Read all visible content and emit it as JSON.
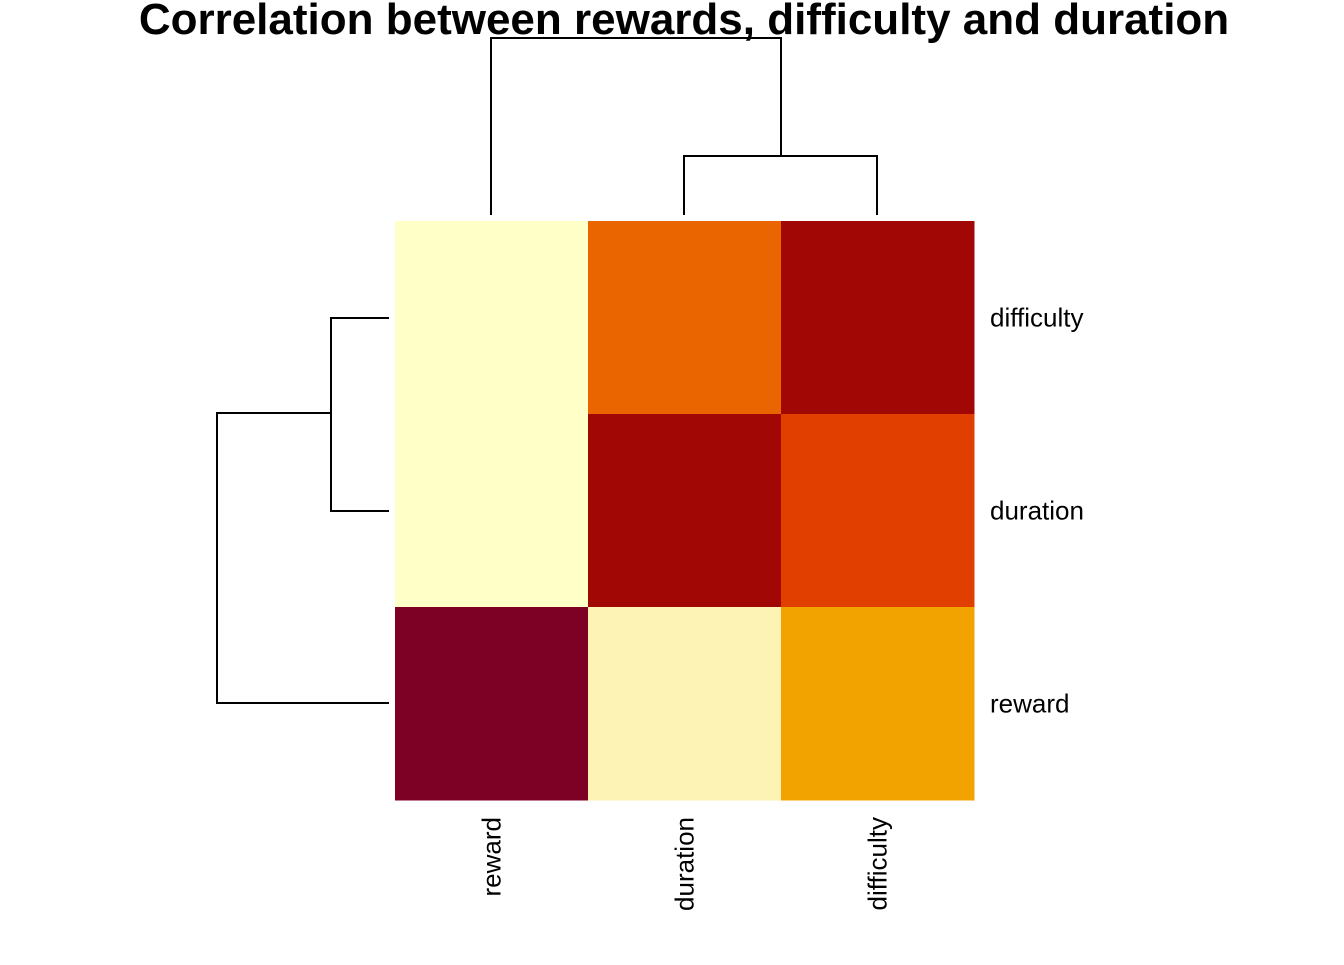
{
  "chart_data": {
    "type": "heatmap",
    "title": "Correlation between rewards, difficulty and duration",
    "columns": [
      "reward",
      "duration",
      "difficulty"
    ],
    "rows_top_to_bottom": [
      "difficulty",
      "duration",
      "reward"
    ],
    "cells": [
      [
        "#FFFFC8",
        "#EA6400",
        "#A00705"
      ],
      [
        "#FFFFC8",
        "#A00705",
        "#E03F00"
      ],
      [
        "#7D0025",
        "#FCF3B4",
        "#F3A300"
      ]
    ],
    "dendrogram_top": "reward joins (duration, difficulty)",
    "dendrogram_left": "reward joins (difficulty, duration)",
    "color_scheme": "heat (dark red = high, pale yellow = low)"
  }
}
